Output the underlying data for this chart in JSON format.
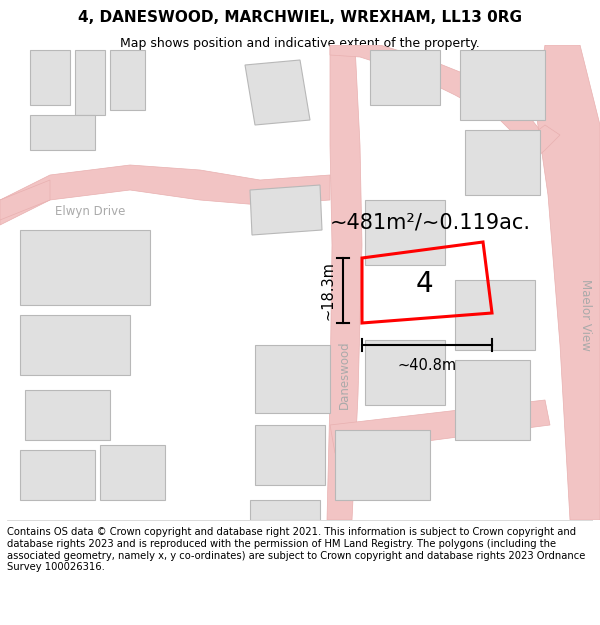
{
  "title": "4, DANESWOOD, MARCHWIEL, WREXHAM, LL13 0RG",
  "subtitle": "Map shows position and indicative extent of the property.",
  "footer": "Contains OS data © Crown copyright and database right 2021. This information is subject to Crown copyright and database rights 2023 and is reproduced with the permission of HM Land Registry. The polygons (including the associated geometry, namely x, y co-ordinates) are subject to Crown copyright and database rights 2023 Ordnance Survey 100026316.",
  "area_label": "~481m²/~0.119ac.",
  "number_label": "4",
  "width_label": "~40.8m",
  "height_label": "~18.3m",
  "street_daneswood": "Daneswood",
  "street_elwyn": "Elwyn Drive",
  "street_maelor": "Maelor View",
  "bg_color": "#ffffff",
  "road_color": "#f2c4c4",
  "road_edge": "#e8b0b0",
  "building_fill": "#e0e0e0",
  "building_edge": "#b8b8b8",
  "plot_color": "#ff0000",
  "dim_color": "#000000",
  "street_color": "#aaaaaa",
  "title_fontsize": 11,
  "subtitle_fontsize": 9,
  "footer_fontsize": 7.2,
  "area_fontsize": 15,
  "number_fontsize": 20,
  "dim_fontsize": 10.5,
  "street_fontsize": 8.5
}
